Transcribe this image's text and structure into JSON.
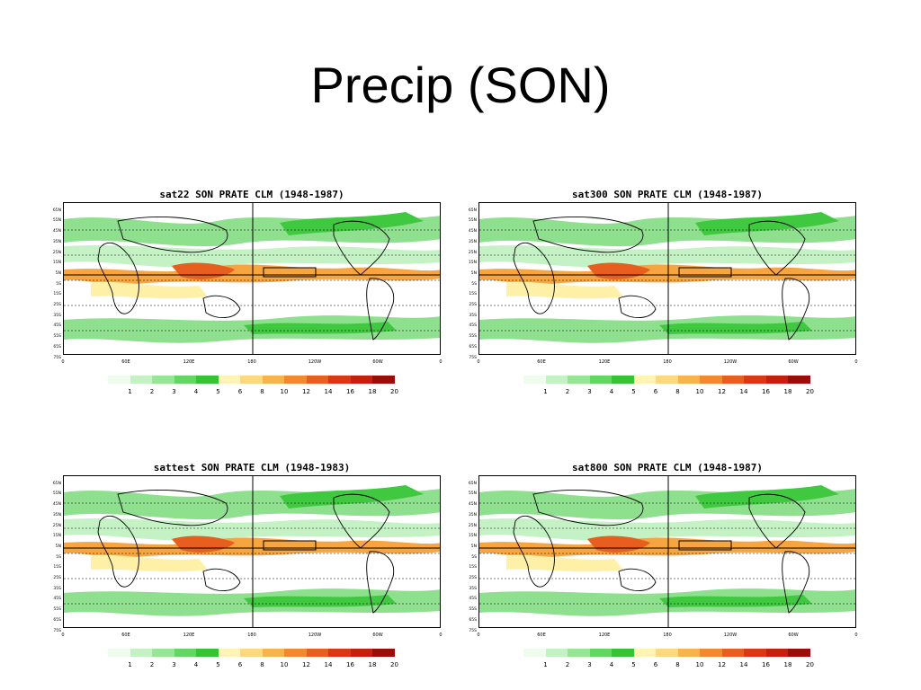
{
  "slide": {
    "title": "Precip (SON)"
  },
  "panels": [
    {
      "title": "sat22 SON PRATE CLM (1948-1987)"
    },
    {
      "title": "sat300 SON PRATE CLM (1948-1987)"
    },
    {
      "title": "sattest SON PRATE CLM (1948-1983)"
    },
    {
      "title": "sat800 SON PRATE CLM (1948-1987)"
    }
  ],
  "map": {
    "lat_labels": [
      "65N",
      "55N",
      "45N",
      "35N",
      "25N",
      "15N",
      "5N",
      "5S",
      "15S",
      "25S",
      "35S",
      "45S",
      "55S",
      "65S",
      "75S"
    ],
    "lon_labels": [
      "0",
      "60E",
      "120E",
      "180",
      "120W",
      "60W",
      "0"
    ]
  },
  "colorbar": {
    "labels": [
      "1",
      "2",
      "3",
      "4",
      "5",
      "6",
      "8",
      "10",
      "12",
      "14",
      "16",
      "18",
      "20"
    ],
    "colors": [
      "#eefcee",
      "#c4f2c4",
      "#96e696",
      "#62d762",
      "#34c434",
      "#fff4b4",
      "#fcd97c",
      "#f8b44a",
      "#f08a2c",
      "#e85e1e",
      "#dc3612",
      "#c81e0c",
      "#9c0c06"
    ]
  },
  "colors": {
    "dry": "#ffffff",
    "light_green": "#c4f2c4",
    "mid_green": "#8ee08e",
    "dark_green": "#40c840",
    "yellow": "#fff0a8",
    "orange": "#f7a540",
    "red_orange": "#e85e1e"
  }
}
